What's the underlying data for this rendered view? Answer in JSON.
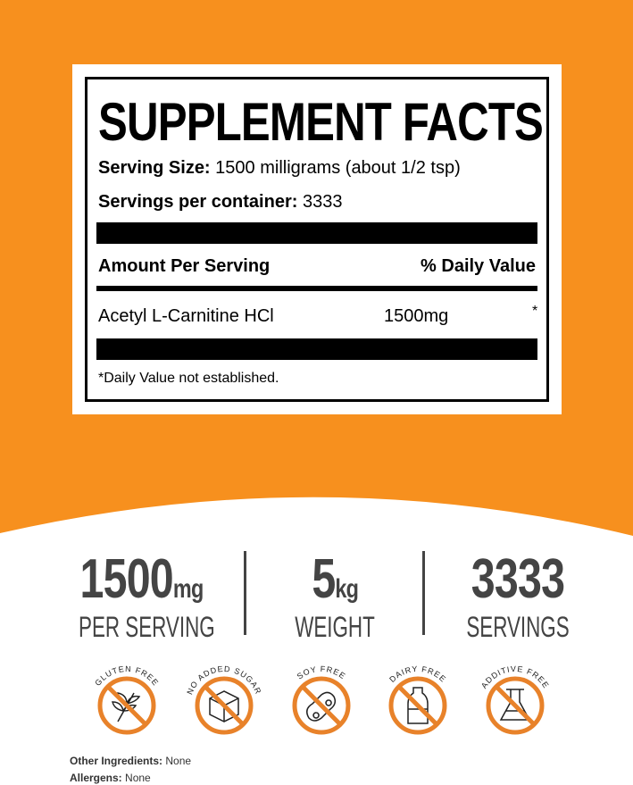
{
  "label": {
    "title": "SUPPLEMENT FACTS",
    "serving_size_label": "Serving Size:",
    "serving_size_value": "1500 milligrams (about 1/2 tsp)",
    "servings_label": "Servings per container:",
    "servings_value": "3333",
    "amount_header": "Amount Per Serving",
    "dv_header": "% Daily Value",
    "ingredient": {
      "name": "Acetyl L-Carnitine HCl",
      "amount": "1500mg",
      "dv": "*"
    },
    "footnote": "*Daily Value not established."
  },
  "stats": [
    {
      "value": "1500",
      "unit": "mg",
      "label": "PER SERVING"
    },
    {
      "value": "5",
      "unit": "kg",
      "label": "WEIGHT"
    },
    {
      "value": "3333",
      "unit": "",
      "label": "SERVINGS"
    }
  ],
  "badges": [
    {
      "label": "GLUTEN FREE",
      "icon": "wheat-icon"
    },
    {
      "label": "NO ADDED SUGAR",
      "icon": "sugar-cube-icon"
    },
    {
      "label": "SOY FREE",
      "icon": "soybean-icon"
    },
    {
      "label": "DAIRY FREE",
      "icon": "milk-bottle-icon"
    },
    {
      "label": "ADDITIVE FREE",
      "icon": "flask-icon"
    }
  ],
  "other_ingredients_label": "Other Ingredients:",
  "other_ingredients_value": "None",
  "allergens_label": "Allergens:",
  "allergens_value": "None",
  "colors": {
    "brand_orange": "#f7901e",
    "badge_orange": "#e8822a",
    "text_gray": "#444444"
  }
}
